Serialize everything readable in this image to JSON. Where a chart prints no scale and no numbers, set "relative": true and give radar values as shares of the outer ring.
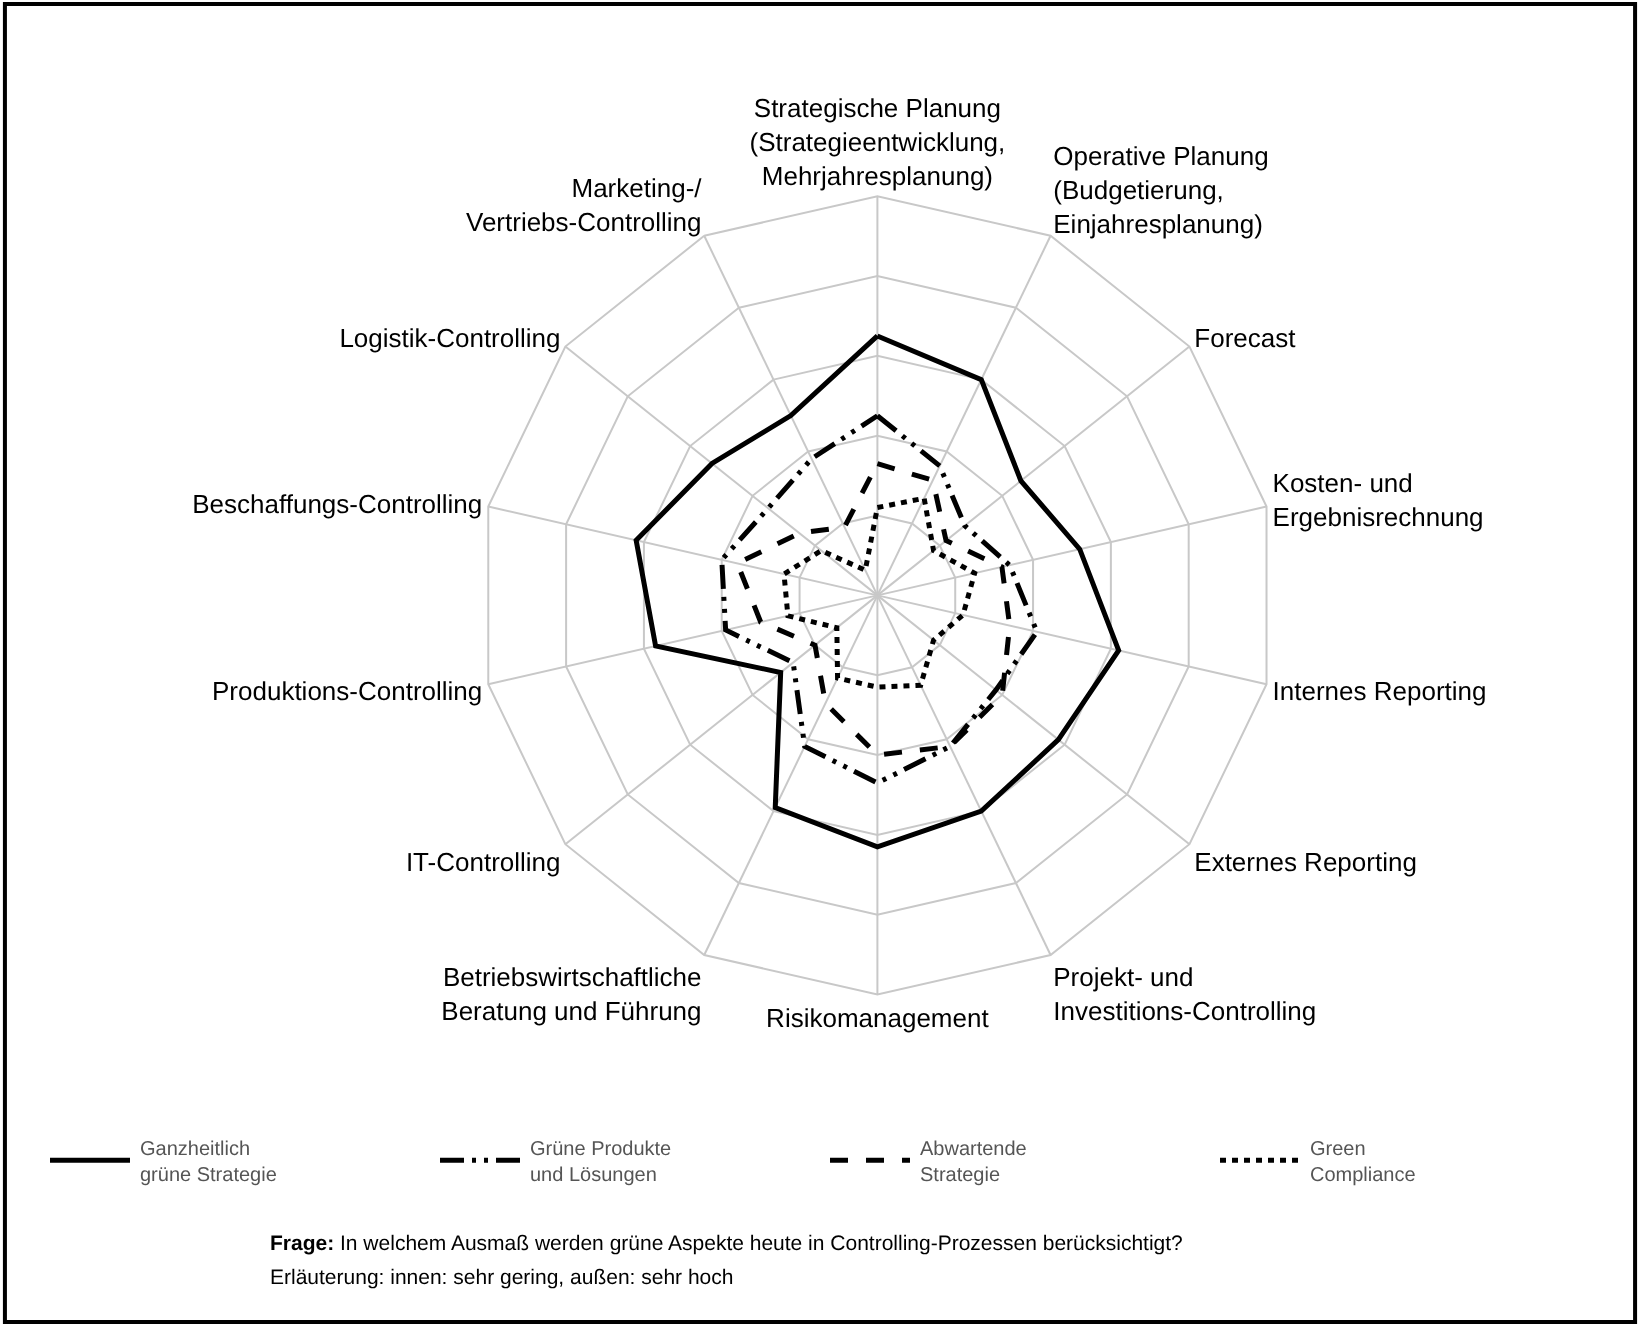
{
  "chart_data": {
    "type": "radar",
    "relative": true,
    "grid": true,
    "legend": "bottom",
    "marker": "none",
    "categories": [
      "Strategische Planung\n(Strategieentwicklung,\nMehrjahresplanung)",
      "Operative Planung\n(Budgetierung,\nEinjahresplanung)",
      "Forecast",
      "Kosten- und\nErgebnisrechnung",
      "Internes Reporting",
      "Externes Reporting",
      "Projekt- und\nInvestitions-Controlling",
      "Risikomanagement",
      "Betriebswirtschaftliche\nBeratung und Führung",
      "IT-Controlling",
      "Produktions-Controlling",
      "Beschaffungs-Controlling",
      "Logistik-Controlling",
      "Marketing-/\nVertriebs-Controlling"
    ],
    "series": [
      {
        "name": "Ganzheitlich\ngrüne Strategie",
        "color": "#000000",
        "line_style": "solid",
        "values": [
          0.65,
          0.6,
          0.46,
          0.52,
          0.62,
          0.58,
          0.6,
          0.63,
          0.59,
          0.31,
          0.57,
          0.62,
          0.53,
          0.5
        ]
      },
      {
        "name": "Grüne Produkte\nund Lösungen",
        "color": "#000000",
        "line_style": "dashdotdot",
        "values": [
          0.45,
          0.36,
          0.28,
          0.34,
          0.41,
          0.38,
          0.42,
          0.47,
          0.42,
          0.27,
          0.39,
          0.4,
          0.35,
          0.38
        ]
      },
      {
        "name": "Abwartende\nStrategie",
        "color": "#000000",
        "line_style": "dashed",
        "values": [
          0.33,
          0.32,
          0.22,
          0.32,
          0.34,
          0.4,
          0.42,
          0.4,
          0.3,
          0.2,
          0.3,
          0.36,
          0.25,
          0.19
        ]
      },
      {
        "name": "Green\nCompliance",
        "color": "#000000",
        "line_style": "dotted",
        "values": [
          0.22,
          0.27,
          0.18,
          0.25,
          0.22,
          0.18,
          0.25,
          0.23,
          0.23,
          0.13,
          0.23,
          0.24,
          0.18,
          0.07
        ]
      }
    ],
    "annotations": [
      "Frage: In welchem Ausmaß werden grüne Aspekte heute in Controlling-Prozessen berücksichtigt?",
      "Erläuterung: innen: sehr gering, außen: sehr hoch"
    ]
  }
}
